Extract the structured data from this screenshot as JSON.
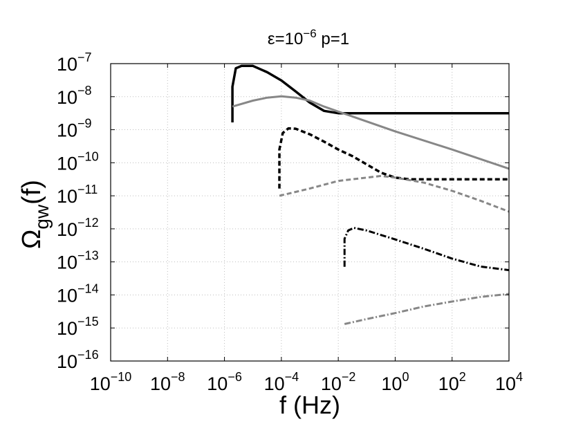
{
  "chart_data": {
    "type": "line",
    "title": "ε=10⁻⁶ p=1",
    "title_parts": {
      "base": "ε=10",
      "exp": "−6",
      "rest": " p=1"
    },
    "xlabel": "f (Hz)",
    "ylabel_parts": {
      "omega": "Ω",
      "sub": "gw",
      "rest": "(f)"
    },
    "x_scale": "log",
    "y_scale": "log",
    "xlim": [
      1e-10,
      10000.0
    ],
    "ylim": [
      1e-16,
      1e-07
    ],
    "x_ticks": [
      {
        "value": -10,
        "base": "10",
        "exp": "−10"
      },
      {
        "value": -8,
        "base": "10",
        "exp": "−8"
      },
      {
        "value": -6,
        "base": "10",
        "exp": "−6"
      },
      {
        "value": -4,
        "base": "10",
        "exp": "−4"
      },
      {
        "value": -2,
        "base": "10",
        "exp": "−2"
      },
      {
        "value": 0,
        "base": "10",
        "exp": "0"
      },
      {
        "value": 2,
        "base": "10",
        "exp": "2"
      },
      {
        "value": 4,
        "base": "10",
        "exp": "4"
      }
    ],
    "y_ticks": [
      {
        "value": -16,
        "base": "10",
        "exp": "−16"
      },
      {
        "value": -15,
        "base": "10",
        "exp": "−15"
      },
      {
        "value": -14,
        "base": "10",
        "exp": "−14"
      },
      {
        "value": -13,
        "base": "10",
        "exp": "−13"
      },
      {
        "value": -12,
        "base": "10",
        "exp": "−12"
      },
      {
        "value": -11,
        "base": "10",
        "exp": "−11"
      },
      {
        "value": -10,
        "base": "10",
        "exp": "−10"
      },
      {
        "value": -9,
        "base": "10",
        "exp": "−9"
      },
      {
        "value": -8,
        "base": "10",
        "exp": "−8"
      },
      {
        "value": -7,
        "base": "10",
        "exp": "−7"
      }
    ],
    "grid": true,
    "series": [
      {
        "color": "#000000",
        "style": "solid",
        "width": 3.5,
        "points": [
          [
            -5.72,
            -8.78
          ],
          [
            -5.72,
            -7.7
          ],
          [
            -5.6,
            -7.14
          ],
          [
            -5.4,
            -7.07
          ],
          [
            -5.0,
            -7.07
          ],
          [
            -4.5,
            -7.26
          ],
          [
            -4.0,
            -7.51
          ],
          [
            -3.5,
            -7.84
          ],
          [
            -3.0,
            -8.18
          ],
          [
            -2.5,
            -8.43
          ],
          [
            -2.0,
            -8.5
          ],
          [
            4.0,
            -8.5
          ]
        ]
      },
      {
        "color": "#878787",
        "style": "solid",
        "width": 3,
        "points": [
          [
            -5.72,
            -8.3
          ],
          [
            -5.0,
            -8.12
          ],
          [
            -4.5,
            -8.03
          ],
          [
            -4.0,
            -7.99
          ],
          [
            -3.5,
            -8.03
          ],
          [
            -3.0,
            -8.12
          ],
          [
            -2.5,
            -8.3
          ],
          [
            -2.0,
            -8.45
          ],
          [
            0.0,
            -9.05
          ],
          [
            2.0,
            -9.6
          ],
          [
            4.0,
            -10.18
          ]
        ]
      },
      {
        "color": "#000000",
        "style": "dashed",
        "width": 3.5,
        "points": [
          [
            -4.07,
            -10.78
          ],
          [
            -4.07,
            -9.6
          ],
          [
            -3.95,
            -9.1
          ],
          [
            -3.75,
            -8.96
          ],
          [
            -3.5,
            -8.97
          ],
          [
            -3.0,
            -9.14
          ],
          [
            -2.5,
            -9.36
          ],
          [
            -2.0,
            -9.6
          ],
          [
            -1.5,
            -9.8
          ],
          [
            -1.0,
            -10.05
          ],
          [
            -0.5,
            -10.3
          ],
          [
            0.0,
            -10.45
          ],
          [
            0.5,
            -10.5
          ],
          [
            4.0,
            -10.5
          ]
        ]
      },
      {
        "color": "#878787",
        "style": "dashed",
        "width": 3,
        "points": [
          [
            -4.07,
            -11.0
          ],
          [
            -3.0,
            -10.78
          ],
          [
            -2.0,
            -10.55
          ],
          [
            -1.0,
            -10.45
          ],
          [
            -0.5,
            -10.4
          ],
          [
            0.0,
            -10.45
          ],
          [
            1.0,
            -10.6
          ],
          [
            2.0,
            -10.85
          ],
          [
            3.0,
            -11.15
          ],
          [
            4.0,
            -11.48
          ]
        ]
      },
      {
        "color": "#000000",
        "style": "dashdot",
        "width": 3,
        "points": [
          [
            -1.78,
            -13.15
          ],
          [
            -1.78,
            -12.3
          ],
          [
            -1.65,
            -12.05
          ],
          [
            -1.45,
            -11.97
          ],
          [
            -1.0,
            -12.05
          ],
          [
            0.0,
            -12.32
          ],
          [
            1.0,
            -12.6
          ],
          [
            2.0,
            -12.9
          ],
          [
            3.0,
            -13.14
          ],
          [
            4.0,
            -13.25
          ]
        ]
      },
      {
        "color": "#878787",
        "style": "dashdot",
        "width": 3,
        "points": [
          [
            -1.78,
            -14.88
          ],
          [
            -1.0,
            -14.73
          ],
          [
            0.0,
            -14.55
          ],
          [
            1.0,
            -14.35
          ],
          [
            2.0,
            -14.2
          ],
          [
            3.0,
            -14.06
          ],
          [
            4.0,
            -13.97
          ]
        ]
      }
    ]
  }
}
